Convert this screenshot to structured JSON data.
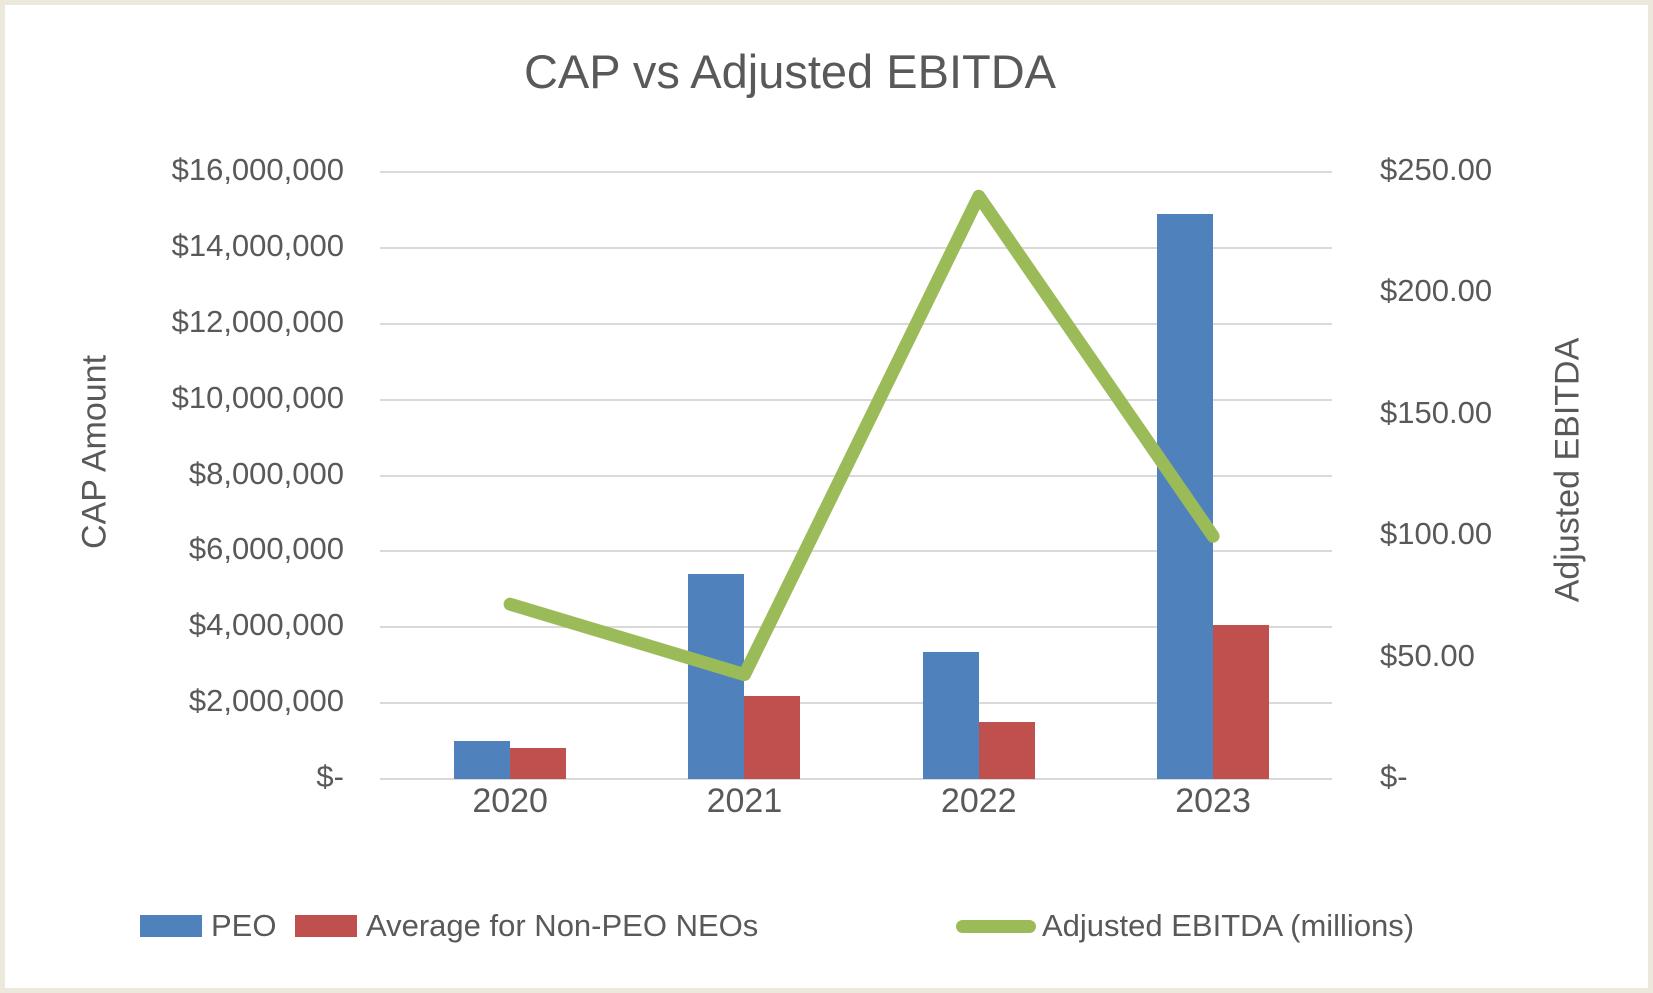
{
  "title": "CAP vs Adjusted EBITDA",
  "left_axis": {
    "title": "CAP Amount",
    "ticks": [
      "$16,000,000",
      "$14,000,000",
      "$12,000,000",
      "$10,000,000",
      "$8,000,000",
      "$6,000,000",
      "$4,000,000",
      "$2,000,000",
      "$-"
    ]
  },
  "right_axis": {
    "title": "Adjusted EBITDA",
    "ticks": [
      "$250.00",
      "$200.00",
      "$150.00",
      "$100.00",
      "$50.00",
      "$-"
    ]
  },
  "x_axis": {
    "categories": [
      "2020",
      "2021",
      "2022",
      "2023"
    ]
  },
  "colors": {
    "peo_bar": "#4f81bd",
    "non_peo_bar": "#c0504d",
    "ebitda_line": "#9bbb59",
    "text": "#595959",
    "gridline": "#d9d9d9",
    "frame": "#ece9dc"
  },
  "chart_data": {
    "type": "combo",
    "title": "CAP vs Adjusted EBITDA",
    "categories": [
      "2020",
      "2021",
      "2022",
      "2023"
    ],
    "series": [
      {
        "name": "PEO",
        "type": "bar",
        "axis": "left",
        "color": "#4f81bd",
        "values": [
          1000000,
          5400000,
          3350000,
          14900000
        ]
      },
      {
        "name": "Average for Non-PEO NEOs",
        "type": "bar",
        "axis": "left",
        "color": "#c0504d",
        "values": [
          820000,
          2200000,
          1500000,
          4050000
        ]
      },
      {
        "name": "Adjusted EBITDA (millions)",
        "type": "line",
        "axis": "right",
        "color": "#9bbb59",
        "values": [
          72,
          43,
          240,
          100
        ]
      }
    ],
    "left_ylabel": "CAP Amount",
    "right_ylabel": "Adjusted EBITDA",
    "left_ylim": [
      0,
      16000000
    ],
    "left_tick_step": 2000000,
    "right_ylim": [
      0,
      250
    ],
    "right_tick_step": 50,
    "grid": true,
    "legend_position": "bottom"
  }
}
